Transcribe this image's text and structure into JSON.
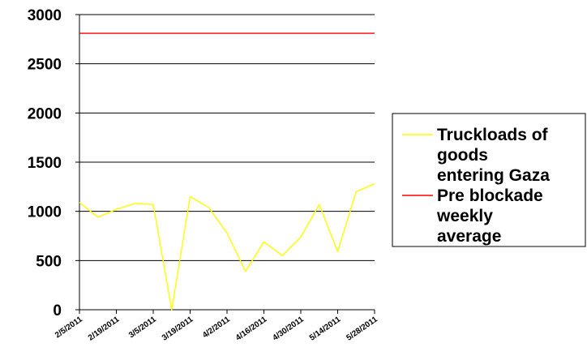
{
  "chart_data": {
    "type": "line",
    "title": "",
    "xlabel": "",
    "ylabel": "",
    "ylim": [
      0,
      3000
    ],
    "y_ticks": [
      0,
      500,
      1000,
      1500,
      2000,
      2500,
      3000
    ],
    "x_tick_labels": [
      "2/5/2011",
      "2/19/2011",
      "3/5/2011",
      "3/19/2011",
      "4/2/2011",
      "4/16/2011",
      "4/30/2011",
      "5/14/2011",
      "5/28/2011"
    ],
    "x": [
      "2/5/2011",
      "2/12/2011",
      "2/19/2011",
      "2/26/2011",
      "3/5/2011",
      "3/12/2011",
      "3/19/2011",
      "3/26/2011",
      "4/2/2011",
      "4/9/2011",
      "4/16/2011",
      "4/23/2011",
      "4/30/2011",
      "5/7/2011",
      "5/14/2011",
      "5/21/2011",
      "5/28/2011"
    ],
    "grid": true,
    "legend_position": "right",
    "series": [
      {
        "name": "Truckloads of goods entering Gaza",
        "legend_lines": [
          "Truckloads of",
          "goods",
          "entering Gaza"
        ],
        "color": "#ffff00",
        "values": [
          1090,
          940,
          1020,
          1080,
          1070,
          0,
          1150,
          1040,
          780,
          390,
          690,
          550,
          740,
          1070,
          590,
          1200,
          1280
        ]
      },
      {
        "name": "Pre blockade weekly average",
        "legend_lines": [
          "Pre blockade",
          "weekly",
          "average"
        ],
        "color": "#ff0000",
        "values": [
          2810,
          2810,
          2810,
          2810,
          2810,
          2810,
          2810,
          2810,
          2810,
          2810,
          2810,
          2810,
          2810,
          2810,
          2810,
          2810,
          2810
        ]
      }
    ]
  }
}
